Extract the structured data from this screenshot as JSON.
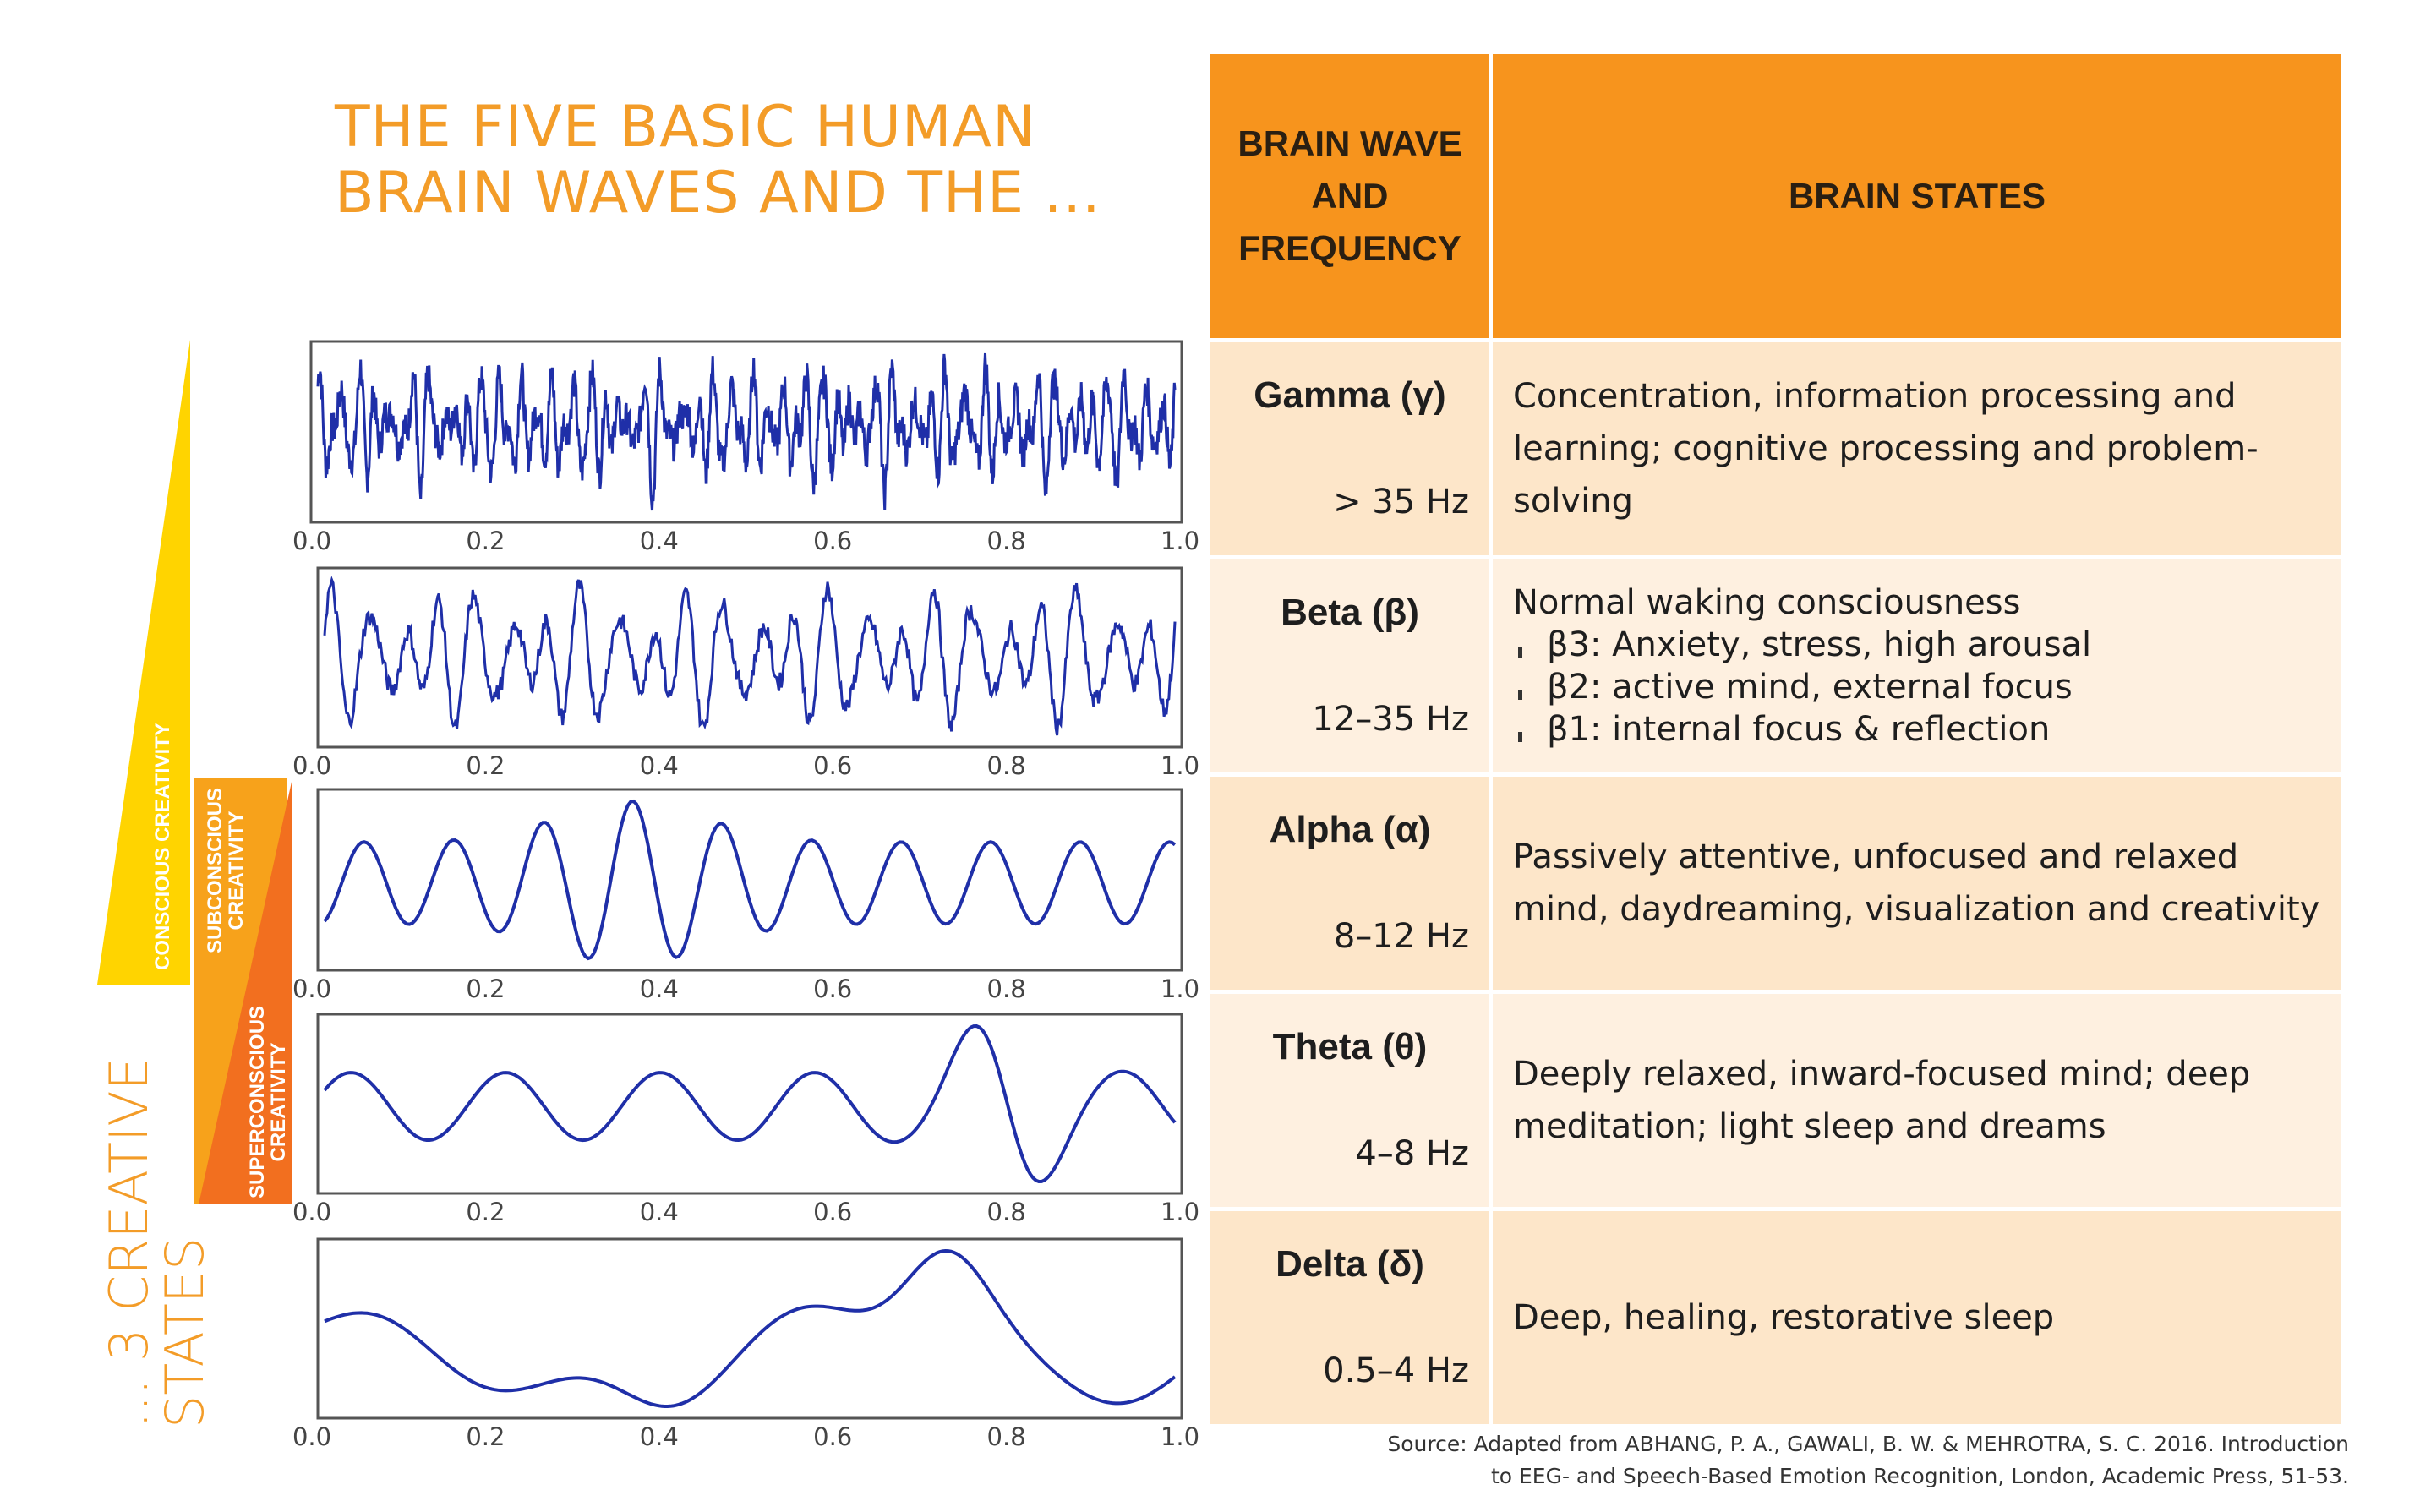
{
  "title": {
    "line1": "THE FIVE BASIC HUMAN",
    "line2": "BRAIN WAVES AND THE ..."
  },
  "side_caption": {
    "line1": "... 3 CREATIVE",
    "line2": "STATES"
  },
  "creativity_triangles": [
    {
      "label": "CONSCIOUS CREATIVITY",
      "color": "#ffd400"
    },
    {
      "label_line1": "SUBCONSCIOUS",
      "label_line2": "CREATIVITY",
      "color": "#f7a21b"
    },
    {
      "label_line1": "SUPERCONSCIOUS",
      "label_line2": "CREATIVITY",
      "color": "#f26f1f"
    }
  ],
  "wave_panels": [
    {
      "name": "Gamma",
      "tick_labels": [
        "0.0",
        "0.2",
        "0.4",
        "0.6",
        "0.8",
        "1.0"
      ]
    },
    {
      "name": "Beta",
      "tick_labels": [
        "0.0",
        "0.2",
        "0.4",
        "0.6",
        "0.8",
        "1.0"
      ]
    },
    {
      "name": "Alpha",
      "tick_labels": [
        "0.0",
        "0.2",
        "0.4",
        "0.6",
        "0.8",
        "1.0"
      ]
    },
    {
      "name": "Theta",
      "tick_labels": [
        "0.0",
        "0.2",
        "0.4",
        "0.6",
        "0.8",
        "1.0"
      ]
    },
    {
      "name": "Delta",
      "tick_labels": [
        "0.0",
        "0.2",
        "0.4",
        "0.6",
        "0.8",
        "1.0"
      ]
    }
  ],
  "wave_color": "#1f2fa8",
  "table": {
    "header_left": [
      "BRAIN WAVE",
      "AND",
      "FREQUENCY"
    ],
    "header_right": "BRAIN STATES",
    "header_color": "#f7941d",
    "rows": [
      {
        "wave": "Gamma (γ)",
        "freq": "> 35 Hz",
        "states": [
          "Concentration, information processing and",
          "learning; cognitive processing and problem-",
          "solving"
        ]
      },
      {
        "wave": "Beta (β)",
        "freq": "12–35 Hz",
        "intro": "Normal waking consciousness",
        "bullets": [
          "β3: Anxiety, stress, high arousal",
          "β2: active mind, external focus",
          "β1: internal focus & reflection"
        ]
      },
      {
        "wave": "Alpha (α)",
        "freq": "8–12 Hz",
        "states": [
          "Passively attentive, unfocused and relaxed",
          "mind, daydreaming, visualization and creativity"
        ]
      },
      {
        "wave": "Theta (θ)",
        "freq": "4–8 Hz",
        "states": [
          "Deeply relaxed, inward-focused mind; deep",
          "meditation; light sleep and dreams"
        ]
      },
      {
        "wave": "Delta (δ)",
        "freq": "0.5–4 Hz",
        "states": [
          "Deep, healing, restorative sleep"
        ]
      }
    ]
  },
  "source": {
    "line1": "Source: Adapted from ABHANG, P. A., GAWALI, B. W. & MEHROTRA, S. C. 2016. Introduction",
    "line2": "to EEG- and Speech-Based Emotion Recognition, London, Academic Press, 51-53."
  }
}
